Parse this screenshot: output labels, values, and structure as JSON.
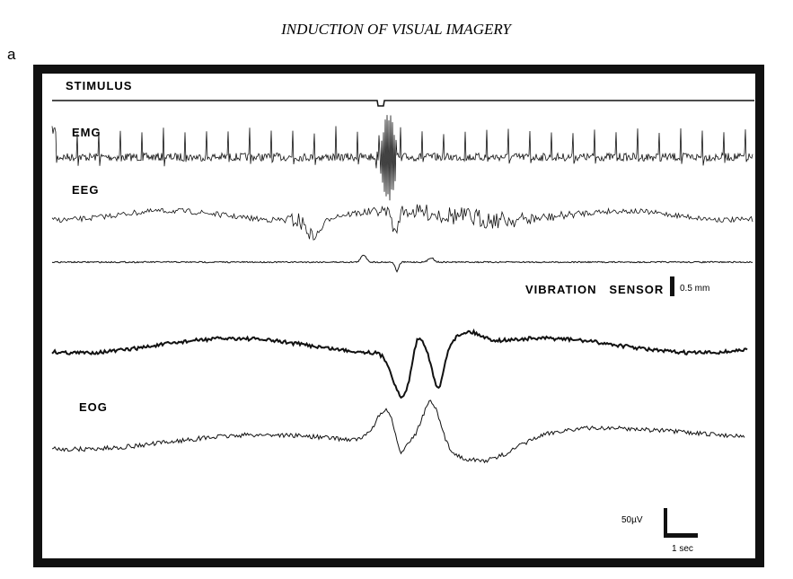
{
  "header": {
    "title": "INDUCTION OF VISUAL IMAGERY"
  },
  "figure": {
    "panel": "a",
    "labels": {
      "stimulus": "STIMULUS",
      "emg": "EMG",
      "eeg": "EEG",
      "vibration": "VIBRATION   SENSOR",
      "eog": "EOG"
    },
    "scale_bars": {
      "vibration": "0.5 mm",
      "amplitude": "50µV",
      "time": "1 sec"
    }
  }
}
